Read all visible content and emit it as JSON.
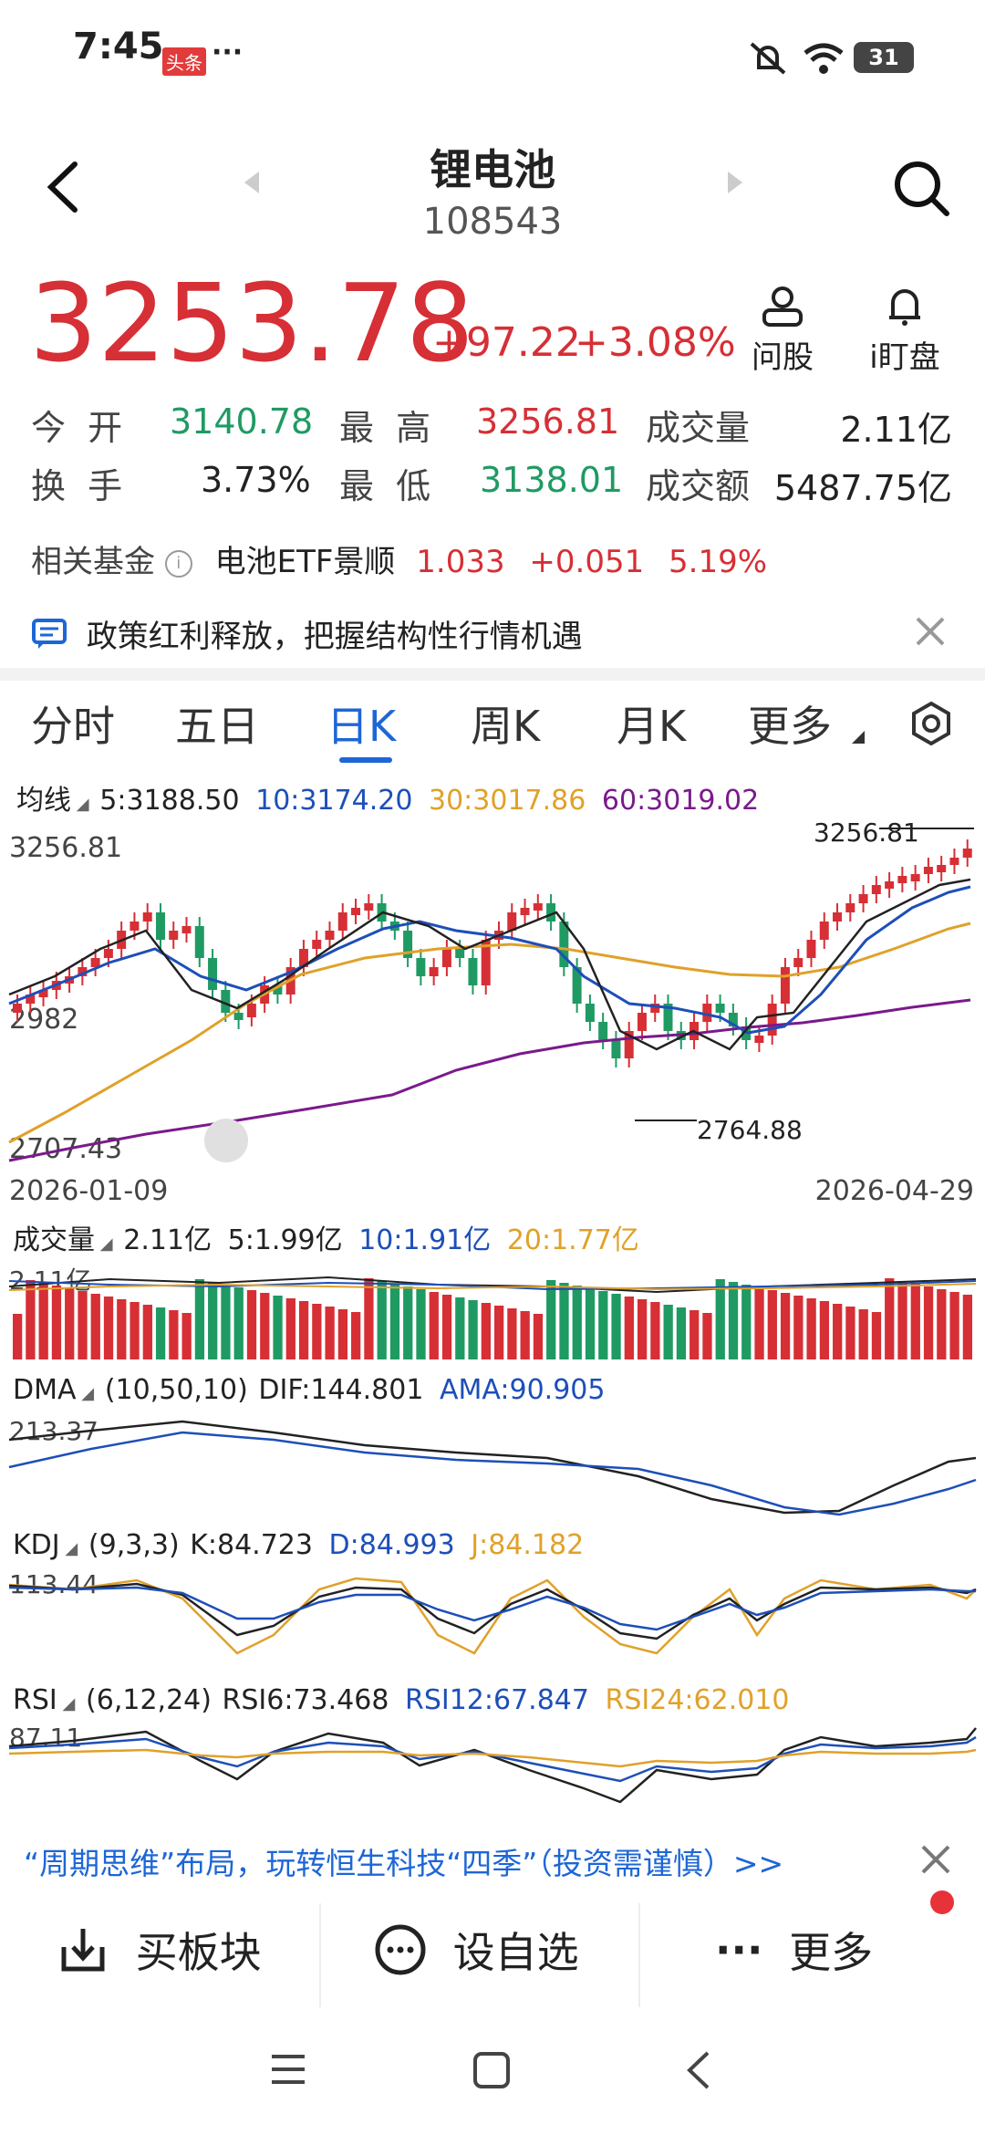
{
  "status": {
    "time": "7:45",
    "app_badge": "头条",
    "more": "···",
    "battery": "31"
  },
  "header": {
    "name": "锂电池",
    "code": "108543"
  },
  "quote": {
    "price": "3253.78",
    "change": "+97.22",
    "pct": "+3.08%",
    "ask_label": "问股",
    "watch_label": "i盯盘"
  },
  "stats": {
    "open_label": "今  开",
    "open": "3140.78",
    "high_label": "最  高",
    "high": "3256.81",
    "vol_label": "成交量",
    "vol": "2.11亿",
    "turn_label": "换  手",
    "turn": "3.73%",
    "low_label": "最  低",
    "low": "3138.01",
    "amt_label": "成交额",
    "amt": "5487.75亿"
  },
  "fund": {
    "label": "相关基金",
    "name": "电池ETF景顺",
    "price": "1.033",
    "chg": "+0.051",
    "pct": "5.19%"
  },
  "news": {
    "text": "政策红利释放，把握结构性行情机遇"
  },
  "tabs": [
    "分时",
    "五日",
    "日K",
    "周K",
    "月K",
    "更多"
  ],
  "ma": {
    "label": "均线",
    "ma5": "5:3188.50",
    "ma10": "10:3174.20",
    "ma30": "30:3017.86",
    "ma60": "60:3019.02"
  },
  "kline": {
    "high_tag": "3256.81",
    "low_tag": "2764.88",
    "y_top": "3256.81",
    "y_mid": "2982",
    "y_bottom": "2707.43",
    "date_start": "2026-01-09",
    "date_end": "2026-04-29"
  },
  "volume": {
    "label": "成交量",
    "v": "2.11亿",
    "v5": "5:1.99亿",
    "v10": "10:1.91亿",
    "v20": "20:1.77亿",
    "axis": "2.11亿"
  },
  "dma": {
    "label": "DMA",
    "params": "(10,50,10)",
    "dif": "DIF:144.801",
    "ama": "AMA:90.905",
    "axis": "213.37"
  },
  "kdj": {
    "label": "KDJ",
    "params": "(9,3,3)",
    "k": "K:84.723",
    "d": "D:84.993",
    "j": "J:84.182",
    "axis": "113.44"
  },
  "rsi": {
    "label": "RSI",
    "params": "(6,12,24)",
    "r6": "RSI6:73.468",
    "r12": "RSI12:67.847",
    "r24": "RSI24:62.010",
    "axis": "87.11"
  },
  "promo": {
    "text": "“周期思维”布局，玩转恒生科技“四季”（投资需谨慎）>>"
  },
  "bottom": {
    "buy": "买板块",
    "watch": "设自选",
    "more": "更多"
  },
  "colors": {
    "up": "#d62f35",
    "down": "#1f9a63",
    "accent": "#1d66d6"
  }
}
